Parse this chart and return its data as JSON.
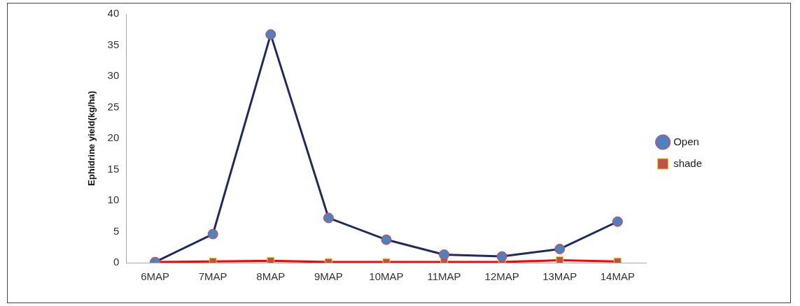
{
  "chart_data": {
    "type": "line",
    "ylabel": "Ephidrine yield(kg/ha)",
    "categories": [
      "6MAP",
      "7MAP",
      "8MAP",
      "9MAP",
      "10MAP",
      "11MAP",
      "12MAP",
      "13MAP",
      "14MAP"
    ],
    "series": [
      {
        "name": "Open",
        "color": "#1f2a5e",
        "marker": "circle",
        "values": [
          0.1,
          4.6,
          36.7,
          7.2,
          3.7,
          1.3,
          1.0,
          2.2,
          6.6
        ]
      },
      {
        "name": "shade",
        "color": "#ff0000",
        "marker": "square",
        "values": [
          0.1,
          0.2,
          0.3,
          0.1,
          0.1,
          0.1,
          0.1,
          0.4,
          0.2
        ]
      }
    ],
    "ylim": [
      0,
      40
    ],
    "yticks": [
      0,
      5,
      10,
      15,
      20,
      25,
      30,
      35,
      40
    ],
    "grid": false,
    "legend": "right"
  }
}
